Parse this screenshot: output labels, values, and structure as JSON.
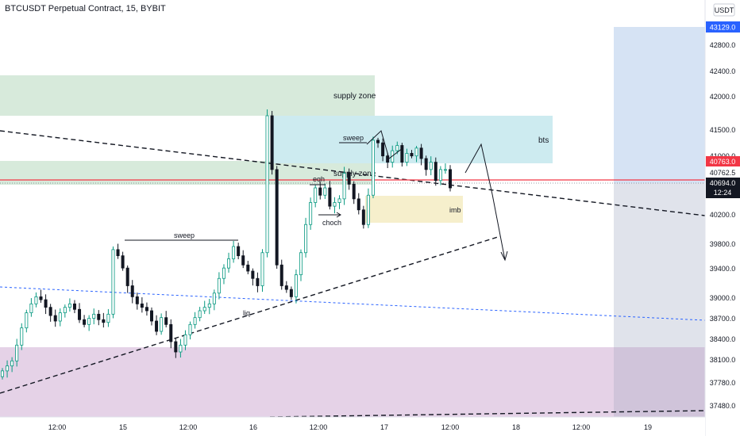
{
  "chart_data": {
    "type": "candlestick",
    "title": "BTCUSDT Perpetual Contract, 15, BYBIT",
    "currency": "USDT",
    "y_ticks": [
      37480.0,
      37780.0,
      38100.0,
      38400.0,
      38700.0,
      39000.0,
      39400.0,
      39800.0,
      40200.0,
      41000.0,
      41500.0,
      42000.0,
      42400.0,
      42800.0
    ],
    "x_ticks": [
      "12:00",
      "15",
      "12:00",
      "16",
      "12:00",
      "17",
      "12:00",
      "18",
      "12:00",
      "19"
    ],
    "price_labels": {
      "top": "43129.0",
      "level": "40763.0",
      "last": "40762.5",
      "current": "40694.0",
      "countdown": "12:24"
    },
    "zones": [
      {
        "label": "supply zone",
        "color": "#d7eadb"
      },
      {
        "label": "supply zone",
        "color": "#d7eadb"
      },
      {
        "label": "bts",
        "color": "#cdebf0"
      },
      {
        "label": "imb",
        "color": "#f6efcc"
      },
      {
        "label": "",
        "color": "#e5d2e7"
      },
      {
        "label": "",
        "color": "#d6e3f4"
      }
    ],
    "annotations": [
      "sweep",
      "sweep",
      "eqh",
      "choch",
      "liq"
    ],
    "candles_close": [
      37980,
      38050,
      38120,
      38350,
      38600,
      38820,
      38950,
      39050,
      39010,
      38900,
      38780,
      38700,
      38820,
      38900,
      38950,
      38870,
      38720,
      38650,
      38740,
      38800,
      38720,
      38680,
      38800,
      39750,
      39650,
      39450,
      39200,
      39050,
      38950,
      38900,
      38850,
      38700,
      38550,
      38750,
      38650,
      38400,
      38250,
      38350,
      38500,
      38650,
      38750,
      38850,
      38900,
      38950,
      39100,
      39300,
      39450,
      39600,
      39800,
      39650,
      39500,
      39400,
      39300,
      39200,
      39700,
      41750,
      40850,
      39500,
      39200,
      39150,
      39050,
      39350,
      39700,
      40100,
      40400,
      40600,
      40500,
      40600,
      40350,
      40400,
      40450,
      40800,
      40650,
      40450,
      40300,
      40100,
      40500,
      41350,
      41300,
      41050,
      40950,
      41150,
      41250,
      40950,
      41100,
      41050,
      41200,
      41000,
      40850,
      40950,
      40700,
      40850,
      40850,
      40600
    ]
  }
}
